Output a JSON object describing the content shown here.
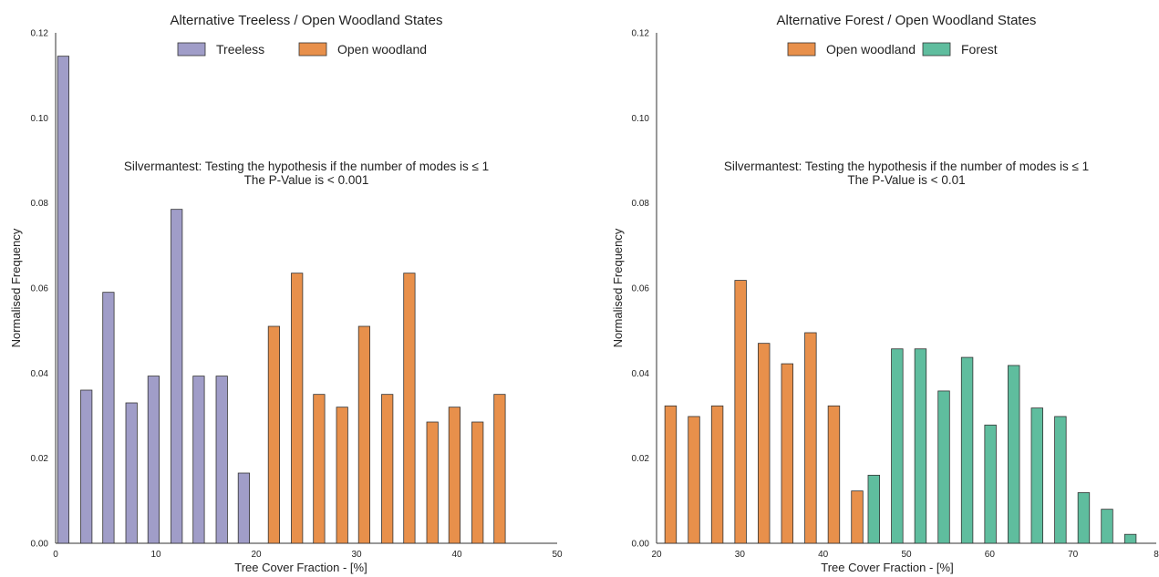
{
  "chart_data": [
    {
      "type": "bar",
      "title": "Alternative Treeless / Open Woodland States",
      "xlabel": "Tree Cover Fraction - [%]",
      "ylabel": "Normalised Frequency",
      "xlim": [
        0,
        50
      ],
      "ylim": [
        0,
        0.12
      ],
      "xticks": [
        "0",
        "10",
        "20",
        "30",
        "40",
        "50"
      ],
      "yticks": [
        "0.00",
        "0.02",
        "0.04",
        "0.06",
        "0.08",
        "0.10",
        "0.12"
      ],
      "grid": false,
      "legend_position": "top-center",
      "annotation": [
        "Silvermantest: Testing the hypothesis if the number of modes is ≤ 1",
        "The P-Value is < 0.001"
      ],
      "series": [
        {
          "name": "Treeless",
          "color": "#a09dc8",
          "x": [
            0.2,
            2.5,
            4.7,
            7.0,
            9.2,
            11.5,
            13.7,
            16.0,
            18.2
          ],
          "values": [
            0.1145,
            0.036,
            0.059,
            0.033,
            0.0393,
            0.0785,
            0.0393,
            0.0393,
            0.0165
          ]
        },
        {
          "name": "Open woodland",
          "color": "#e8904b",
          "x": [
            21.2,
            23.5,
            25.7,
            28.0,
            30.2,
            32.5,
            34.7,
            37.0,
            39.2,
            41.5,
            43.7
          ],
          "values": [
            0.051,
            0.0635,
            0.035,
            0.032,
            0.051,
            0.035,
            0.0635,
            0.0285,
            0.032,
            0.0285,
            0.035
          ]
        }
      ]
    },
    {
      "type": "bar",
      "title": "Alternative Forest / Open Woodland States",
      "xlabel": "Tree Cover Fraction - [%]",
      "ylabel": "Normalised Frequency",
      "xlim": [
        20,
        80
      ],
      "ylim": [
        0,
        0.12
      ],
      "xticks": [
        "20",
        "30",
        "40",
        "50",
        "60",
        "70",
        "8"
      ],
      "yticks": [
        "0.00",
        "0.02",
        "0.04",
        "0.06",
        "0.08",
        "0.10",
        "0.12"
      ],
      "grid": false,
      "legend_position": "top-center",
      "annotation": [
        "Silvermantest: Testing the hypothesis if the number of modes is ≤ 1",
        "The P-Value is < 0.01"
      ],
      "series": [
        {
          "name": "Open woodland",
          "color": "#e8904b",
          "x": [
            21.0,
            23.8,
            26.6,
            29.4,
            32.2,
            35.0,
            37.8,
            40.6,
            43.4
          ],
          "values": [
            0.0323,
            0.0298,
            0.0323,
            0.0618,
            0.047,
            0.0422,
            0.0495,
            0.0323,
            0.0123
          ]
        },
        {
          "name": "Forest",
          "color": "#5fbd9e",
          "x": [
            45.4,
            48.2,
            51.0,
            53.8,
            56.6,
            59.4,
            62.2,
            65.0,
            67.8,
            70.6,
            73.4,
            76.2,
            79.0
          ],
          "values": [
            0.016,
            0.0457,
            0.0457,
            0.0358,
            0.0437,
            0.0278,
            0.0418,
            0.0318,
            0.0298,
            0.0119,
            0.008,
            0.0021,
            0.0
          ]
        }
      ]
    }
  ]
}
